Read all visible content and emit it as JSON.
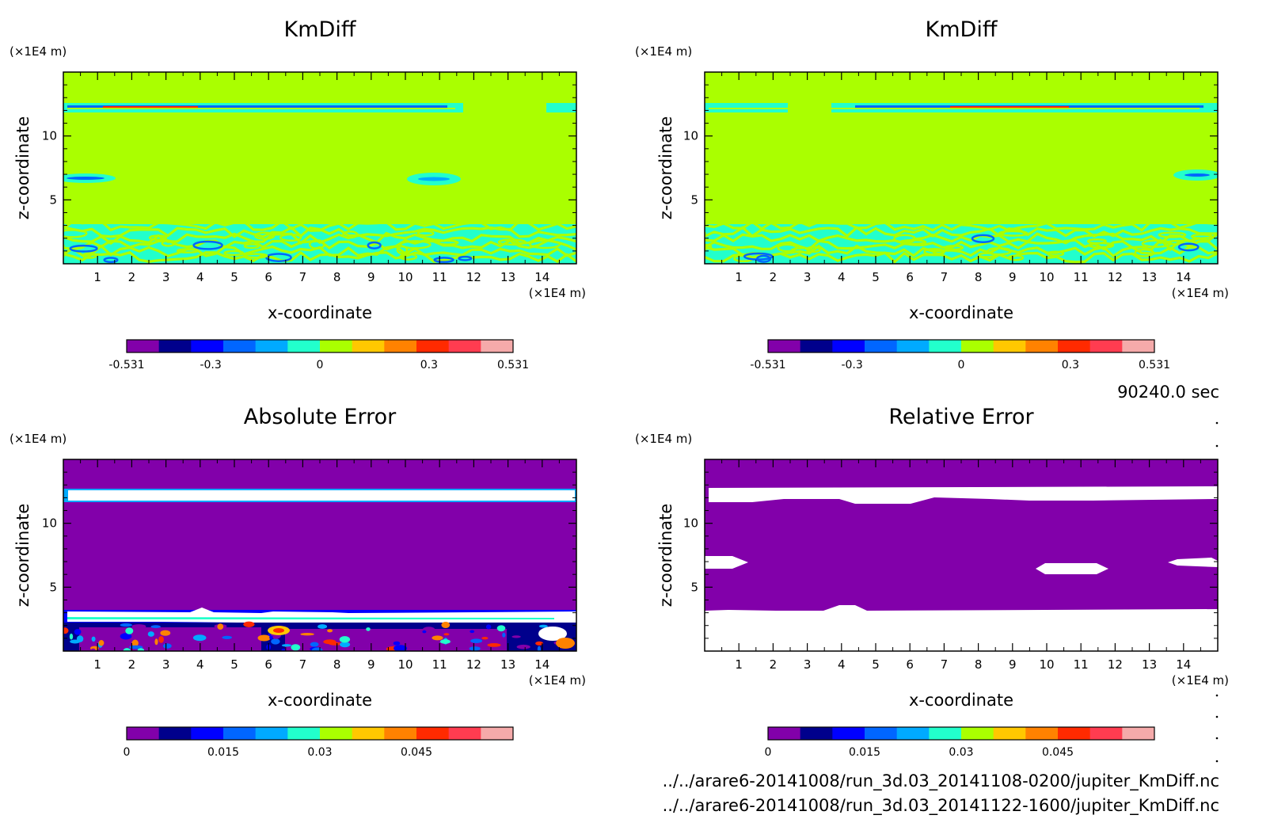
{
  "colormap": [
    "#8200aa",
    "#00008c",
    "#0000ff",
    "#0066ff",
    "#00aaff",
    "#22ffcc",
    "#aaff00",
    "#ffc800",
    "#ff8200",
    "#ff2a00",
    "#ff3c50",
    "#f5aaaa"
  ],
  "info": {
    "time": "90240.0 sec",
    "file1": "../../arare6-20141008/run_3d.03_20141108-0200/jupiter_KmDiff.nc",
    "file2": "../../arare6-20141008/run_3d.03_20141122-1600/jupiter_KmDiff.nc"
  },
  "chart_data": [
    {
      "type": "heatmap",
      "title": "KmDiff",
      "xlabel": "x-coordinate",
      "ylabel": "z-coordinate",
      "x_unit": "(×1E4 m)",
      "y_unit": "(×1E4 m)",
      "xlim": [
        0,
        15
      ],
      "ylim": [
        0,
        15
      ],
      "xticks": [
        "1",
        "2",
        "3",
        "4",
        "5",
        "6",
        "7",
        "8",
        "9",
        "10",
        "11",
        "12",
        "13",
        "14"
      ],
      "yticks": [
        "5",
        "10"
      ],
      "field": {
        "background": "near 0",
        "features": [
          "thin band of alternating positive/negative values near z=12",
          "small patches near z=6.5 at x=1 and x=10.5",
          "swirling positive/negative bands for z<3"
        ]
      },
      "colorbar": {
        "ticks": [
          "-0.531",
          "-0.3",
          "0",
          "0.3",
          "0.531"
        ],
        "range": [
          -0.531,
          0.531
        ],
        "levels": 12
      }
    },
    {
      "type": "heatmap",
      "title": "KmDiff",
      "xlabel": "x-coordinate",
      "ylabel": "z-coordinate",
      "x_unit": "(×1E4 m)",
      "y_unit": "(×1E4 m)",
      "xlim": [
        0,
        15
      ],
      "ylim": [
        0,
        15
      ],
      "xticks": [
        "1",
        "2",
        "3",
        "4",
        "5",
        "6",
        "7",
        "8",
        "9",
        "10",
        "11",
        "12",
        "13",
        "14"
      ],
      "yticks": [
        "5",
        "10"
      ],
      "field": {
        "background": "near 0",
        "features": [
          "thin band of alternating positive/negative values near z=12",
          "small patch near z=6.5 at x=14",
          "swirling positive/negative bands for z<3"
        ]
      },
      "colorbar": {
        "ticks": [
          "-0.531",
          "-0.3",
          "0",
          "0.3",
          "0.531"
        ],
        "range": [
          -0.531,
          0.531
        ],
        "levels": 12
      }
    },
    {
      "type": "heatmap",
      "title": "Absolute Error",
      "xlabel": "x-coordinate",
      "ylabel": "z-coordinate",
      "x_unit": "(×1E4 m)",
      "y_unit": "(×1E4 m)",
      "xlim": [
        0,
        15
      ],
      "ylim": [
        0,
        15
      ],
      "xticks": [
        "1",
        "2",
        "3",
        "4",
        "5",
        "6",
        "7",
        "8",
        "9",
        "10",
        "11",
        "12",
        "13",
        "14"
      ],
      "yticks": [
        "5",
        "10"
      ],
      "field": {
        "background": "0",
        "features": [
          "band of values above 0.06 (white) near z=12",
          "band of values above 0.06 (white) near z=3",
          "scattered small errors for z<3"
        ]
      },
      "colorbar": {
        "ticks": [
          "0",
          "0.015",
          "0.03",
          "0.045"
        ],
        "range": [
          0,
          0.06
        ],
        "levels": 12
      }
    },
    {
      "type": "heatmap",
      "title": "Relative Error",
      "xlabel": "x-coordinate",
      "ylabel": "z-coordinate",
      "x_unit": "(×1E4 m)",
      "y_unit": "(×1E4 m)",
      "xlim": [
        0,
        15
      ],
      "ylim": [
        0,
        15
      ],
      "xticks": [
        "1",
        "2",
        "3",
        "4",
        "5",
        "6",
        "7",
        "8",
        "9",
        "10",
        "11",
        "12",
        "13",
        "14"
      ],
      "yticks": [
        "5",
        "10"
      ],
      "field": {
        "background": "0",
        "features": [
          "undefined (white) band near z=12",
          "undefined (white) patches near z=6.5 at x=0.5, x=11 and x=14.5",
          "undefined (white) region for z<3"
        ]
      },
      "colorbar": {
        "ticks": [
          "0",
          "0.015",
          "0.03",
          "0.045"
        ],
        "range": [
          0,
          0.06
        ],
        "levels": 12
      }
    }
  ]
}
